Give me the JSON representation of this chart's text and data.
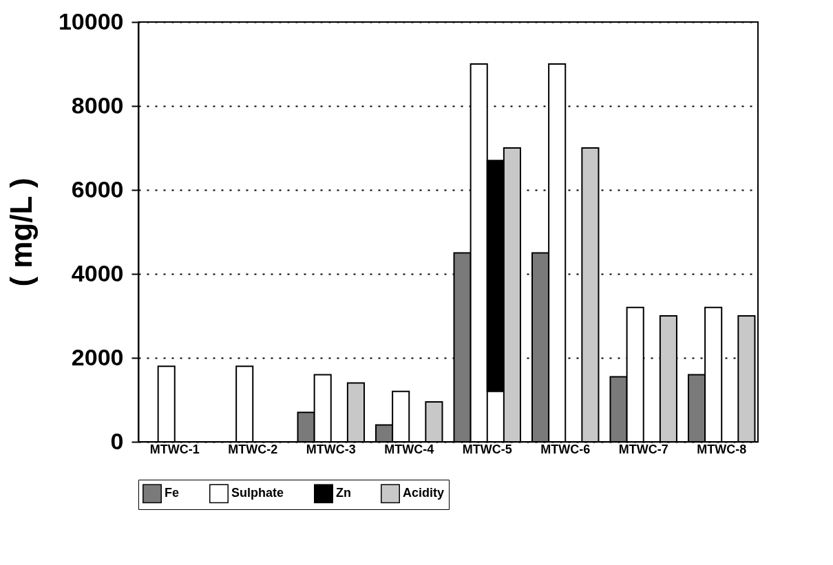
{
  "chart_data": {
    "type": "bar",
    "ylabel": "( mg/L )",
    "categories": [
      "MTWC-1",
      "MTWC-2",
      "MTWC-3",
      "MTWC-4",
      "MTWC-5",
      "MTWC-6",
      "MTWC-7",
      "MTWC-8"
    ],
    "series": [
      {
        "name": "Fe",
        "color": "#7a7a7a",
        "values": [
          null,
          null,
          700,
          400,
          4500,
          4500,
          1550,
          1600
        ]
      },
      {
        "name": "Sulphate",
        "color": "#ffffff",
        "values": [
          1800,
          1800,
          1600,
          1200,
          9000,
          9000,
          3200,
          3200
        ]
      },
      {
        "name": "Zn",
        "color": "#000000",
        "values": [
          null,
          null,
          null,
          null,
          5500,
          null,
          null,
          null
        ],
        "base": [
          null,
          null,
          null,
          null,
          1200,
          null,
          null,
          null
        ]
      },
      {
        "name": "Acidity",
        "color": "#c8c8c8",
        "values": [
          null,
          null,
          1400,
          950,
          7000,
          7000,
          3000,
          3000
        ]
      }
    ],
    "ylim": [
      0,
      10000
    ],
    "yticks": [
      0,
      2000,
      4000,
      6000,
      8000,
      10000
    ],
    "grid": "y",
    "legend": "bottom"
  }
}
